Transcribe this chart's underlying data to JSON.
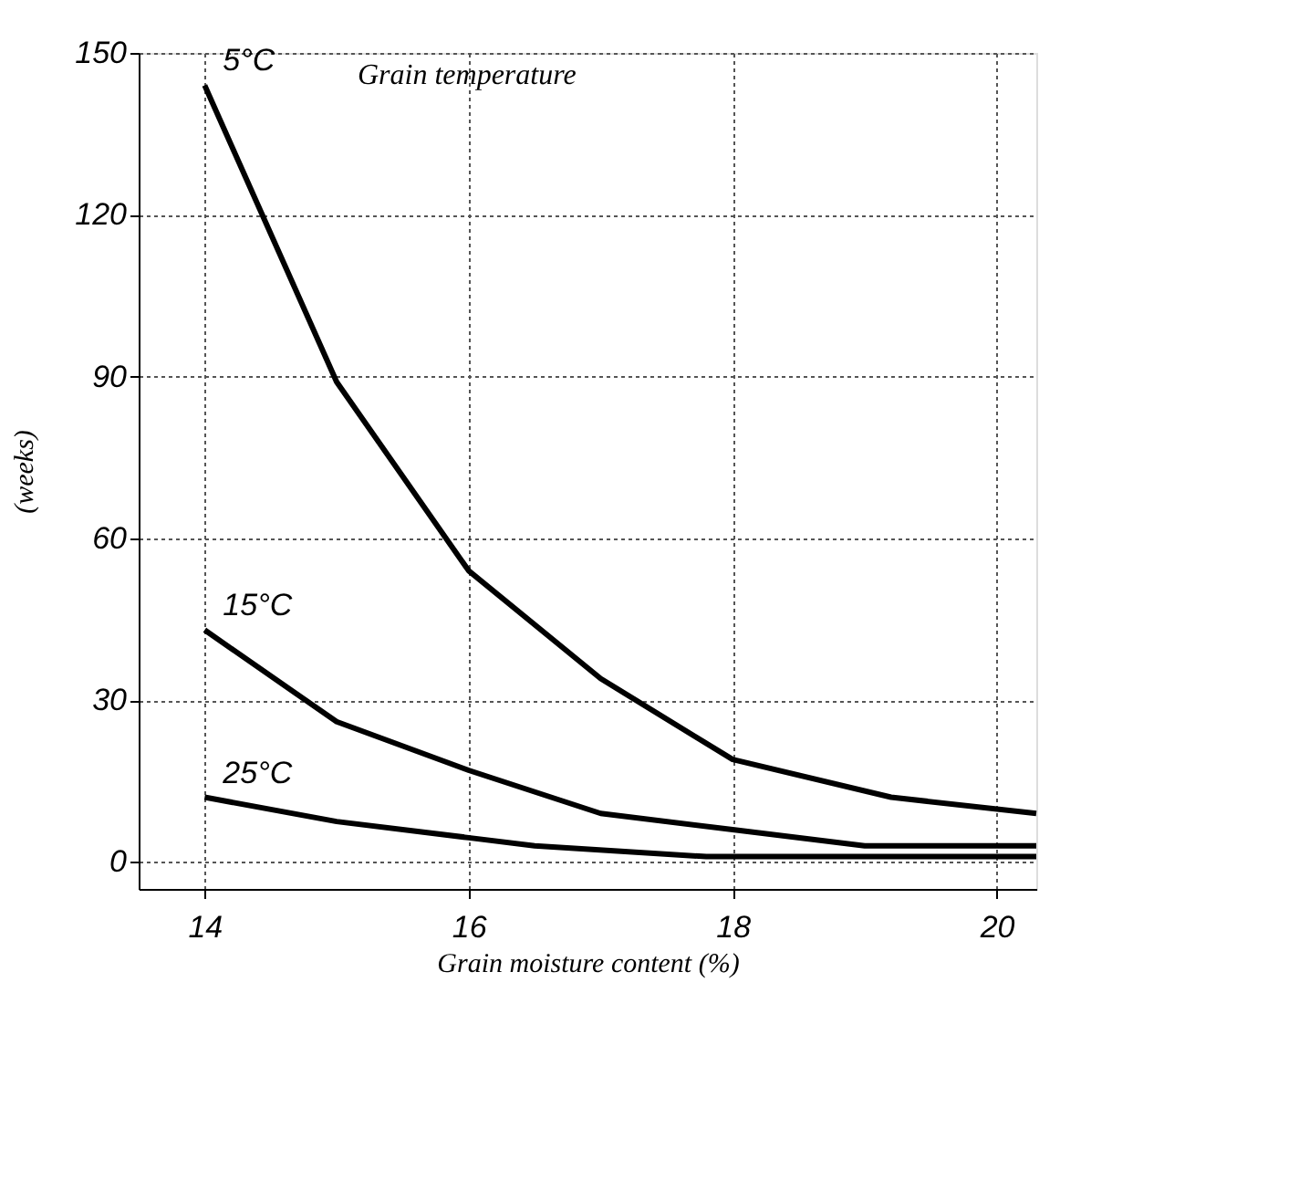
{
  "chart_data": {
    "type": "line",
    "xlabel": "Grain moisture content    (%)",
    "ylabel": "(weeks)",
    "xlim": [
      13.5,
      20.3
    ],
    "ylim": [
      -5,
      150
    ],
    "xticks": [
      14,
      16,
      18,
      20
    ],
    "yticks": [
      0,
      30,
      60,
      90,
      120,
      150
    ],
    "grid": true,
    "marker": "none",
    "line_style": "solid",
    "annotations": [
      "Grain temperature"
    ],
    "series": [
      {
        "name": "5°C",
        "color": "#000000",
        "x": [
          14,
          15,
          16,
          17,
          18,
          19.2,
          20.3
        ],
        "values": [
          144,
          89,
          54,
          34,
          19,
          12,
          9
        ]
      },
      {
        "name": "15°C",
        "color": "#000000",
        "x": [
          14,
          15,
          16,
          17,
          18,
          19,
          19.4,
          20.3
        ],
        "values": [
          43,
          26,
          17,
          9,
          6,
          3,
          3,
          3
        ]
      },
      {
        "name": "25°C",
        "color": "#000000",
        "x": [
          14,
          15,
          16,
          16.5,
          17.8,
          20.3
        ],
        "values": [
          12,
          7.5,
          4.5,
          3,
          1,
          1
        ]
      }
    ]
  }
}
